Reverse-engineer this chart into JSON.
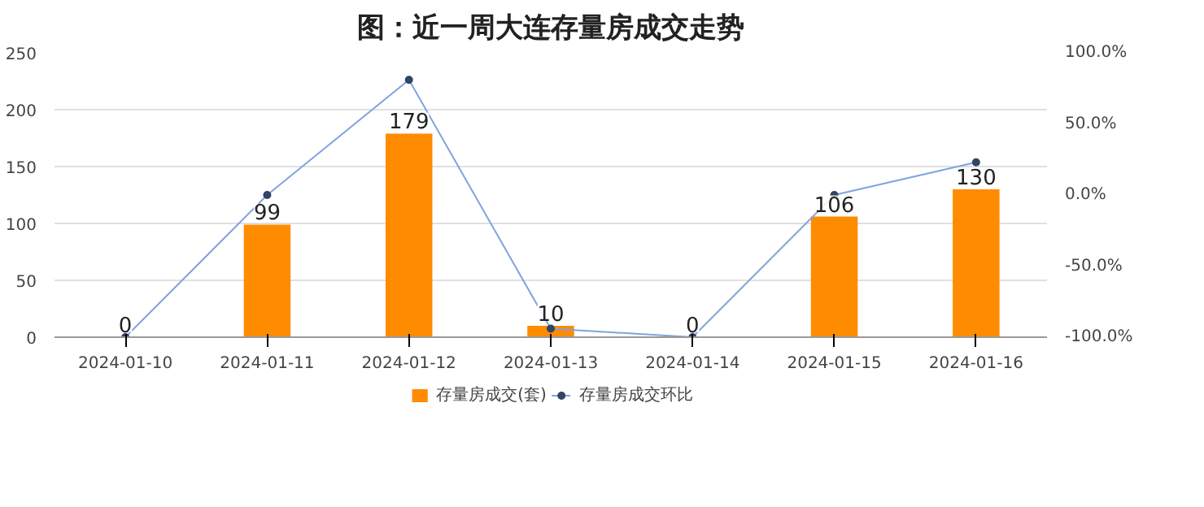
{
  "chart_data": {
    "type": "bar",
    "title": "图：近一周大连存量房成交走势",
    "categories": [
      "2024-01-10",
      "2024-01-11",
      "2024-01-12",
      "2024-01-13",
      "2024-01-14",
      "2024-01-15",
      "2024-01-16"
    ],
    "series": [
      {
        "name": "存量房成交(套)",
        "color": "#ff8c00",
        "values": [
          0,
          99,
          179,
          10,
          0,
          106,
          130
        ],
        "value_labels": [
          "0",
          "99",
          "179",
          "10",
          "0",
          "106",
          "130"
        ]
      },
      {
        "name": "存量房成交环比",
        "type": "line",
        "axis": "y2",
        "color": "#7fa3de",
        "values": [
          -100,
          0,
          81,
          -94,
          -100,
          0,
          23
        ]
      }
    ],
    "ylim": [
      0,
      250
    ],
    "yticks": [
      0,
      50,
      100,
      150,
      200,
      250
    ],
    "y2lim": [
      -100,
      100
    ],
    "y2ticks": [
      {
        "value": -100,
        "label": "-100.0%"
      },
      {
        "value": -50,
        "label": "-50.0%"
      },
      {
        "value": 0,
        "label": "0.0%"
      },
      {
        "value": 50,
        "label": "50.0%"
      },
      {
        "value": 100,
        "label": "100.0%"
      }
    ],
    "grid": "y",
    "legend": "bottom",
    "marker": "circle",
    "line_style": "solid"
  }
}
